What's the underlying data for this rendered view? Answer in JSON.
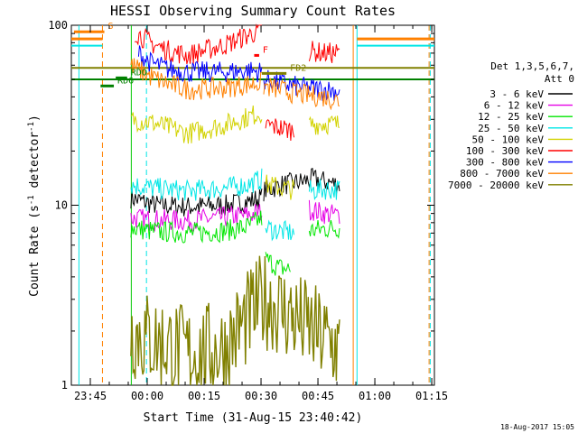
{
  "chart_data": {
    "type": "line",
    "title": "HESSI Observing Summary Count Rates",
    "xlabel": "Start Time (31-Aug-15 23:40:42)",
    "ylabel_main": "Count Rate (s",
    "ylabel_exp1": "-1",
    "ylabel_mid": " detector",
    "ylabel_exp2": "-1",
    "ylabel_end": ")",
    "y_scale": "log",
    "ylim": [
      1,
      100
    ],
    "xlim_minutes": [
      -0.7,
      95
    ],
    "y_ticks": [
      {
        "value": 1,
        "label": "1"
      },
      {
        "value": 10,
        "label": "10"
      },
      {
        "value": 100,
        "label": "100"
      }
    ],
    "x_ticks": [
      {
        "minute": 4.3,
        "label": "23:45"
      },
      {
        "minute": 19.3,
        "label": "00:00"
      },
      {
        "minute": 34.3,
        "label": "00:15"
      },
      {
        "minute": 49.3,
        "label": "00:30"
      },
      {
        "minute": 64.3,
        "label": "00:45"
      },
      {
        "minute": 79.3,
        "label": "01:00"
      },
      {
        "minute": 94.3,
        "label": "01:15"
      }
    ],
    "legend_title": [
      "Det 1,3,5,6,7,",
      "Att 0"
    ],
    "legend_placement": "right",
    "series": [
      {
        "name": "3 - 6 keV",
        "color": "#000000",
        "segments": [
          {
            "x": [
              15,
              18,
              22,
              30,
              40,
              46,
              49.5
            ],
            "y": [
              11,
              10.5,
              10,
              9.8,
              10,
              10.5,
              11
            ]
          },
          {
            "x": [
              50,
              55,
              60,
              63,
              70
            ],
            "y": [
              12,
              13,
              13.5,
              14,
              13
            ]
          }
        ]
      },
      {
        "name": "6 - 12 keV",
        "color": "#e600e6",
        "segments": [
          {
            "x": [
              15,
              20,
              30,
              40,
              46,
              49.5
            ],
            "y": [
              8.5,
              8.3,
              8.2,
              8.6,
              8.8,
              9.2
            ]
          },
          {
            "x": [
              62,
              66,
              70
            ],
            "y": [
              9.5,
              9,
              8.8
            ]
          }
        ]
      },
      {
        "name": "12 - 25 keV",
        "color": "#00e600",
        "segments": [
          {
            "x": [
              15,
              20,
              30,
              40,
              46,
              49.5
            ],
            "y": [
              7.5,
              7.2,
              7,
              7.2,
              7.6,
              8.5
            ]
          },
          {
            "x": [
              50.5,
              54,
              57
            ],
            "y": [
              5,
              4.5,
              4.4
            ]
          },
          {
            "x": [
              62,
              66,
              70
            ],
            "y": [
              7.2,
              7.4,
              7.5
            ]
          }
        ]
      },
      {
        "name": "25 - 50 keV",
        "color": "#00e6e6",
        "segments": [
          {
            "x": [
              15,
              20,
              30,
              40,
              46,
              49.5
            ],
            "y": [
              13,
              12.5,
              12,
              12.5,
              13,
              14
            ]
          },
          {
            "x": [
              50.5,
              54,
              58
            ],
            "y": [
              7.5,
              7.2,
              7
            ]
          },
          {
            "x": [
              62,
              66,
              70
            ],
            "y": [
              12,
              12.3,
              12.2
            ]
          }
        ]
      },
      {
        "name": "50 - 100 keV",
        "color": "#d2d200",
        "segments": [
          {
            "x": [
              15,
              20,
              25,
              30,
              40,
              46,
              49.5
            ],
            "y": [
              30,
              29,
              27,
              25,
              28,
              31,
              33
            ]
          },
          {
            "x": [
              50.5,
              54,
              58
            ],
            "y": [
              13,
              12.6,
              12.2
            ]
          },
          {
            "x": [
              62,
              66,
              70
            ],
            "y": [
              28,
              28.5,
              28
            ]
          }
        ]
      },
      {
        "name": "100 - 300 keV",
        "color": "#ff0000",
        "segments": [
          {
            "x": [
              16,
              20,
              25,
              30,
              40,
              46,
              49.5
            ],
            "y": [
              92,
              80,
              72,
              68,
              78,
              88,
              95
            ]
          },
          {
            "x": [
              50.5,
              54,
              58
            ],
            "y": [
              28,
              27,
              26
            ]
          },
          {
            "x": [
              62,
              66,
              70
            ],
            "y": [
              72,
              70,
              70
            ]
          }
        ]
      },
      {
        "name": "300 - 800 keV",
        "color": "#0000ff",
        "segments": [
          {
            "x": [
              17,
              20,
              25,
              30,
              40,
              46,
              49.5
            ],
            "y": [
              70,
              62,
              57,
              55,
              55,
              56,
              55
            ]
          },
          {
            "x": [
              50,
              54,
              58,
              61,
              66,
              70
            ],
            "y": [
              50,
              48,
              46,
              45,
              44,
              43
            ]
          }
        ]
      },
      {
        "name": "800 - 7000 keV",
        "color": "#ff8000",
        "segments": [
          {
            "x": [
              15,
              20,
              25,
              30,
              40,
              46,
              49.5
            ],
            "y": [
              60,
              52,
              47,
              44,
              45,
              47,
              48
            ]
          },
          {
            "x": [
              50,
              54,
              58,
              61,
              66,
              70
            ],
            "y": [
              46,
              44,
              42,
              41,
              40,
              38
            ]
          }
        ]
      },
      {
        "name": "7000 - 20000 keV",
        "color": "#808000",
        "segments": [
          {
            "x": [
              15,
              20,
              30,
              40,
              47,
              50,
              60,
              66,
              70
            ],
            "y": [
              2,
              1.8,
              1.5,
              1.6,
              2.5,
              3,
              2.2,
              1.8,
              1.6
            ]
          }
        ]
      }
    ],
    "annotations": [
      {
        "label": "S",
        "color": "#ff8000",
        "x_from": 0,
        "x_to": 8
      },
      {
        "label": "F",
        "color": "#ff0000",
        "x_from": 47.5,
        "x_to": 48.8
      },
      {
        "label": "FD2",
        "color": "#808000",
        "x_from": 49.5,
        "x_to": 56
      },
      {
        "label": "RD6",
        "color": "#008000",
        "x_from": 7,
        "x_to": 10.5
      },
      {
        "label": "RDO",
        "color": "#008000",
        "x_from": 11,
        "x_to": 14
      }
    ]
  },
  "footer_stamp": "18-Aug-2017 15:05"
}
